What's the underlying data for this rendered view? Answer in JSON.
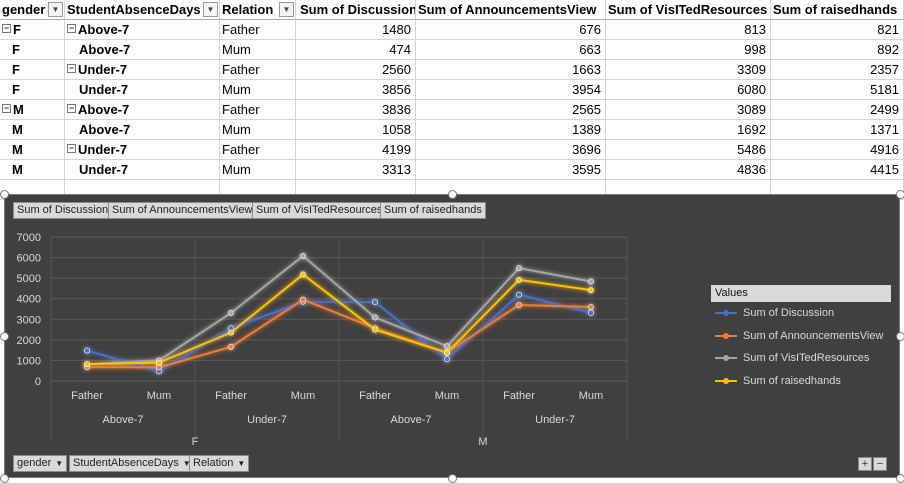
{
  "table": {
    "headers": [
      "gender",
      "StudentAbsenceDays",
      "Relation",
      "Sum of Discussion",
      "Sum of AnnouncementsView",
      "Sum of VisITedResources",
      "Sum of raisedhands"
    ],
    "rows": [
      {
        "gender": "F",
        "absence": "Above-7",
        "relation": "Father",
        "discussion": "1480",
        "announcements": "676",
        "resources": "813",
        "raised": "821"
      },
      {
        "gender": "F",
        "absence": "Above-7",
        "relation": "Mum",
        "discussion": "474",
        "announcements": "663",
        "resources": "998",
        "raised": "892"
      },
      {
        "gender": "F",
        "absence": "Under-7",
        "relation": "Father",
        "discussion": "2560",
        "announcements": "1663",
        "resources": "3309",
        "raised": "2357"
      },
      {
        "gender": "F",
        "absence": "Under-7",
        "relation": "Mum",
        "discussion": "3856",
        "announcements": "3954",
        "resources": "6080",
        "raised": "5181"
      },
      {
        "gender": "M",
        "absence": "Above-7",
        "relation": "Father",
        "discussion": "3836",
        "announcements": "2565",
        "resources": "3089",
        "raised": "2499"
      },
      {
        "gender": "M",
        "absence": "Above-7",
        "relation": "Mum",
        "discussion": "1058",
        "announcements": "1389",
        "resources": "1692",
        "raised": "1371"
      },
      {
        "gender": "M",
        "absence": "Under-7",
        "relation": "Father",
        "discussion": "4199",
        "announcements": "3696",
        "resources": "5486",
        "raised": "4916"
      },
      {
        "gender": "M",
        "absence": "Under-7",
        "relation": "Mum",
        "discussion": "3313",
        "announcements": "3595",
        "resources": "4836",
        "raised": "4415"
      }
    ]
  },
  "chart_buttons": {
    "values": [
      "Sum of Discussion",
      "Sum of AnnouncementsView",
      "Sum of VisITedResources",
      "Sum of raisedhands"
    ],
    "axis": [
      "gender",
      "StudentAbsenceDays",
      "Relation"
    ],
    "plus": "+",
    "minus": "−"
  },
  "legend_title": "Values",
  "chart_data": {
    "type": "line",
    "categories": [
      [
        "F",
        "Above-7",
        "Father"
      ],
      [
        "F",
        "Above-7",
        "Mum"
      ],
      [
        "F",
        "Under-7",
        "Father"
      ],
      [
        "F",
        "Under-7",
        "Mum"
      ],
      [
        "M",
        "Above-7",
        "Father"
      ],
      [
        "M",
        "Above-7",
        "Mum"
      ],
      [
        "M",
        "Under-7",
        "Father"
      ],
      [
        "M",
        "Under-7",
        "Mum"
      ]
    ],
    "level1": [
      "Father",
      "Mum",
      "Father",
      "Mum",
      "Father",
      "Mum",
      "Father",
      "Mum"
    ],
    "level2": [
      "Above-7",
      "Under-7",
      "Above-7",
      "Under-7"
    ],
    "level3": [
      "F",
      "M"
    ],
    "yticks": [
      "7000",
      "6000",
      "5000",
      "4000",
      "3000",
      "2000",
      "1000",
      "0"
    ],
    "ylim": [
      0,
      7000
    ],
    "grid": true,
    "legend_position": "right",
    "series": [
      {
        "name": "Sum of Discussion",
        "color": "#4472c4",
        "values": [
          1480,
          474,
          2560,
          3856,
          3836,
          1058,
          4199,
          3313
        ]
      },
      {
        "name": "Sum of AnnouncementsView",
        "color": "#ed7d31",
        "values": [
          676,
          663,
          1663,
          3954,
          2565,
          1389,
          3696,
          3595
        ]
      },
      {
        "name": "Sum of VisITedResources",
        "color": "#a5a5a5",
        "values": [
          813,
          998,
          3309,
          6080,
          3089,
          1692,
          5486,
          4836
        ]
      },
      {
        "name": "Sum of raisedhands",
        "color": "#ffc000",
        "values": [
          821,
          892,
          2357,
          5181,
          2499,
          1371,
          4916,
          4415
        ]
      }
    ]
  }
}
